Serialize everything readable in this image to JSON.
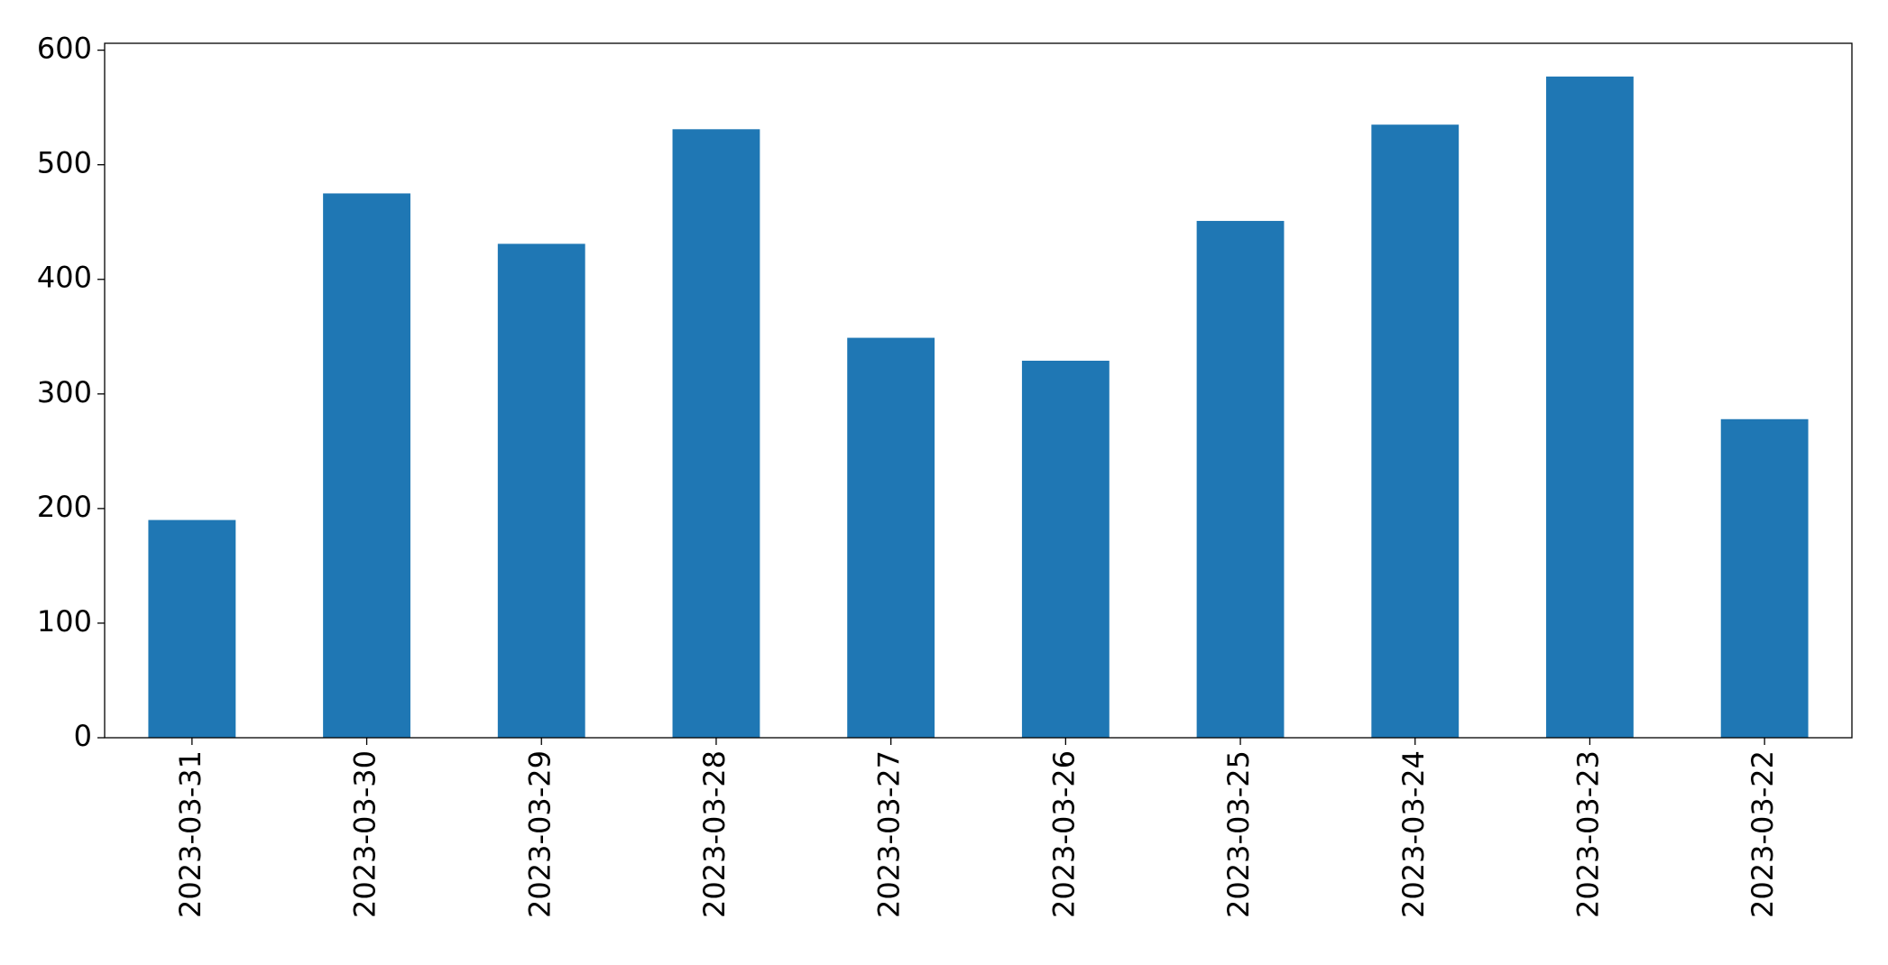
{
  "chart_data": {
    "type": "bar",
    "categories": [
      "2023-03-31",
      "2023-03-30",
      "2023-03-29",
      "2023-03-28",
      "2023-03-27",
      "2023-03-26",
      "2023-03-25",
      "2023-03-24",
      "2023-03-23",
      "2023-03-22"
    ],
    "values": [
      190,
      475,
      431,
      531,
      349,
      329,
      451,
      535,
      577,
      278
    ],
    "color": "#1f77b4",
    "ylim": [
      0,
      606
    ],
    "yticks": [
      0,
      100,
      200,
      300,
      400,
      500,
      600
    ],
    "grid": false
  }
}
